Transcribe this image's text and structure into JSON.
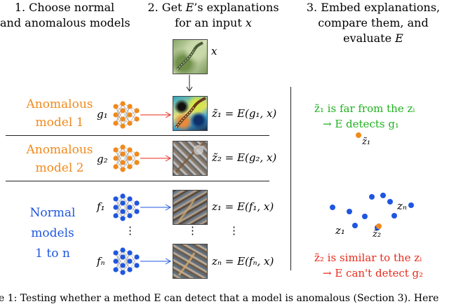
{
  "headers": {
    "col1": [
      "1. Choose normal",
      "and anomalous models"
    ],
    "col2_line1_pre": "2. Get ",
    "col2_line1_var": "E",
    "col2_line1_post": "’s explanations",
    "col2_line2_pre": "for an input ",
    "col2_line2_var": "x",
    "col3": [
      "3. Embed explanations,",
      "compare them, and"
    ],
    "col3_line3_pre": "evaluate ",
    "col3_line3_var": "E"
  },
  "input_label": "x",
  "groups": {
    "anomalous1": [
      "Anomalous",
      "model 1"
    ],
    "anomalous2": [
      "Anomalous",
      "model 2"
    ],
    "normal": [
      "Normal",
      "models",
      "1 to n"
    ]
  },
  "models": {
    "g1": "g₁",
    "g2": "g₂",
    "f1": "f₁",
    "fn": "fₙ"
  },
  "equations": {
    "z1_tilde": "z̃₁ = E(g₁, x)",
    "z2_tilde": "z̃₂ = E(g₂, x)",
    "z1": "z₁ = E(f₁, x)",
    "zn": "zₙ = E(fₙ, x)"
  },
  "dots": "⋮",
  "embedding": {
    "top_note": [
      "z̃₁ is far from the zᵢ",
      "→ E detects g₁"
    ],
    "bottom_note": [
      "z̃₂ is similar to the zᵢ",
      "→ E can't detect g₂"
    ],
    "label_z1_tilde": "z̃₁",
    "label_z2_tilde": "z̃₂",
    "label_z1": "z₁",
    "label_zn": "zₙ"
  },
  "caption": "e 1: Testing whether a method E can detect that a model is anomalous (Section 3). Here",
  "colors": {
    "orange": "#f08a1c",
    "blue": "#1f56e0",
    "green": "#1fb21f",
    "red": "#ea2a1a"
  }
}
